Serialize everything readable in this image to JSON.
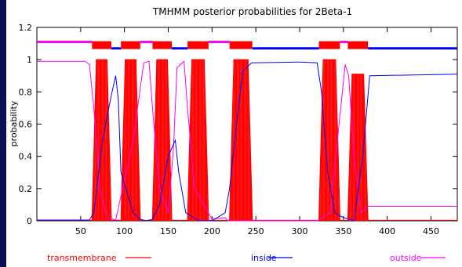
{
  "chart_data": {
    "type": "line",
    "title": "TMHMM posterior probabilities for 2Beta-1",
    "xlabel": "",
    "ylabel": "probability",
    "xlim": [
      0,
      480
    ],
    "ylim": [
      0,
      1.2
    ],
    "x_ticks": [
      50,
      100,
      150,
      200,
      250,
      300,
      350,
      400,
      450
    ],
    "y_ticks": [
      0,
      0.2,
      0.4,
      0.6,
      0.8,
      1,
      1.2
    ],
    "x_tick_labels": [
      "50",
      "100",
      "150",
      "200",
      "250",
      "300",
      "350",
      "400",
      "450"
    ],
    "y_tick_labels": [
      "0",
      "0.2",
      "0.4",
      "0.6",
      "0.8",
      "1",
      "1.2"
    ],
    "grid": false,
    "legend_position": "bottom",
    "series": [
      {
        "name": "transmembrane",
        "color": "#ff0000",
        "segments": [
          {
            "start": 63,
            "end": 85,
            "peak": 1.0
          },
          {
            "start": 96,
            "end": 118,
            "peak": 1.0
          },
          {
            "start": 132,
            "end": 154,
            "peak": 1.0
          },
          {
            "start": 172,
            "end": 196,
            "peak": 1.0
          },
          {
            "start": 220,
            "end": 246,
            "peak": 1.0
          },
          {
            "start": 322,
            "end": 346,
            "peak": 1.0
          },
          {
            "start": 355,
            "end": 378,
            "peak": 0.91
          }
        ]
      },
      {
        "name": "inside",
        "color": "#0000ff",
        "points": [
          [
            0,
            0.005
          ],
          [
            60,
            0.005
          ],
          [
            65,
            0.05
          ],
          [
            75,
            0.5
          ],
          [
            85,
            0.78
          ],
          [
            90,
            0.9
          ],
          [
            93,
            0.75
          ],
          [
            96,
            0.3
          ],
          [
            110,
            0.05
          ],
          [
            118,
            0.01
          ],
          [
            125,
            0.0
          ],
          [
            132,
            0.01
          ],
          [
            140,
            0.1
          ],
          [
            150,
            0.4
          ],
          [
            158,
            0.5
          ],
          [
            162,
            0.3
          ],
          [
            170,
            0.05
          ],
          [
            185,
            0.0
          ],
          [
            200,
            0.0
          ],
          [
            215,
            0.05
          ],
          [
            220,
            0.2
          ],
          [
            228,
            0.6
          ],
          [
            235,
            0.93
          ],
          [
            245,
            0.98
          ],
          [
            300,
            0.985
          ],
          [
            320,
            0.98
          ],
          [
            325,
            0.8
          ],
          [
            332,
            0.3
          ],
          [
            340,
            0.05
          ],
          [
            350,
            0.02
          ],
          [
            362,
            0.0
          ],
          [
            372,
            0.4
          ],
          [
            380,
            0.9
          ],
          [
            480,
            0.91
          ]
        ]
      },
      {
        "name": "outside",
        "color": "#ff00ff",
        "points": [
          [
            0,
            0.99
          ],
          [
            55,
            0.99
          ],
          [
            60,
            0.97
          ],
          [
            65,
            0.7
          ],
          [
            72,
            0.2
          ],
          [
            80,
            0.02
          ],
          [
            90,
            0.005
          ],
          [
            110,
            0.5
          ],
          [
            122,
            0.98
          ],
          [
            128,
            0.99
          ],
          [
            132,
            0.7
          ],
          [
            140,
            0.2
          ],
          [
            150,
            0.05
          ],
          [
            156,
            0.45
          ],
          [
            160,
            0.95
          ],
          [
            168,
            0.99
          ],
          [
            172,
            0.7
          ],
          [
            180,
            0.2
          ],
          [
            200,
            0.01
          ],
          [
            215,
            0.02
          ],
          [
            218,
            0.0
          ],
          [
            240,
            0.0
          ],
          [
            320,
            0.0
          ],
          [
            335,
            0.05
          ],
          [
            345,
            0.6
          ],
          [
            352,
            0.97
          ],
          [
            356,
            0.9
          ],
          [
            362,
            0.4
          ],
          [
            370,
            0.05
          ],
          [
            378,
            0.09
          ],
          [
            480,
            0.09
          ]
        ]
      }
    ],
    "top_track": [
      {
        "state": "outside",
        "start": 0,
        "end": 63
      },
      {
        "state": "transmembrane",
        "start": 63,
        "end": 85
      },
      {
        "state": "inside",
        "start": 85,
        "end": 96
      },
      {
        "state": "transmembrane",
        "start": 96,
        "end": 118
      },
      {
        "state": "outside",
        "start": 118,
        "end": 132
      },
      {
        "state": "transmembrane",
        "start": 132,
        "end": 154
      },
      {
        "state": "inside",
        "start": 154,
        "end": 172
      },
      {
        "state": "transmembrane",
        "start": 172,
        "end": 196
      },
      {
        "state": "outside",
        "start": 196,
        "end": 220
      },
      {
        "state": "transmembrane",
        "start": 220,
        "end": 246
      },
      {
        "state": "inside",
        "start": 246,
        "end": 322
      },
      {
        "state": "transmembrane",
        "start": 322,
        "end": 346
      },
      {
        "state": "outside",
        "start": 346,
        "end": 355
      },
      {
        "state": "transmembrane",
        "start": 355,
        "end": 378
      },
      {
        "state": "inside",
        "start": 378,
        "end": 480
      }
    ],
    "track_levels": {
      "outside": 1.11,
      "inside": 1.07,
      "transmembrane": 1.09
    }
  }
}
